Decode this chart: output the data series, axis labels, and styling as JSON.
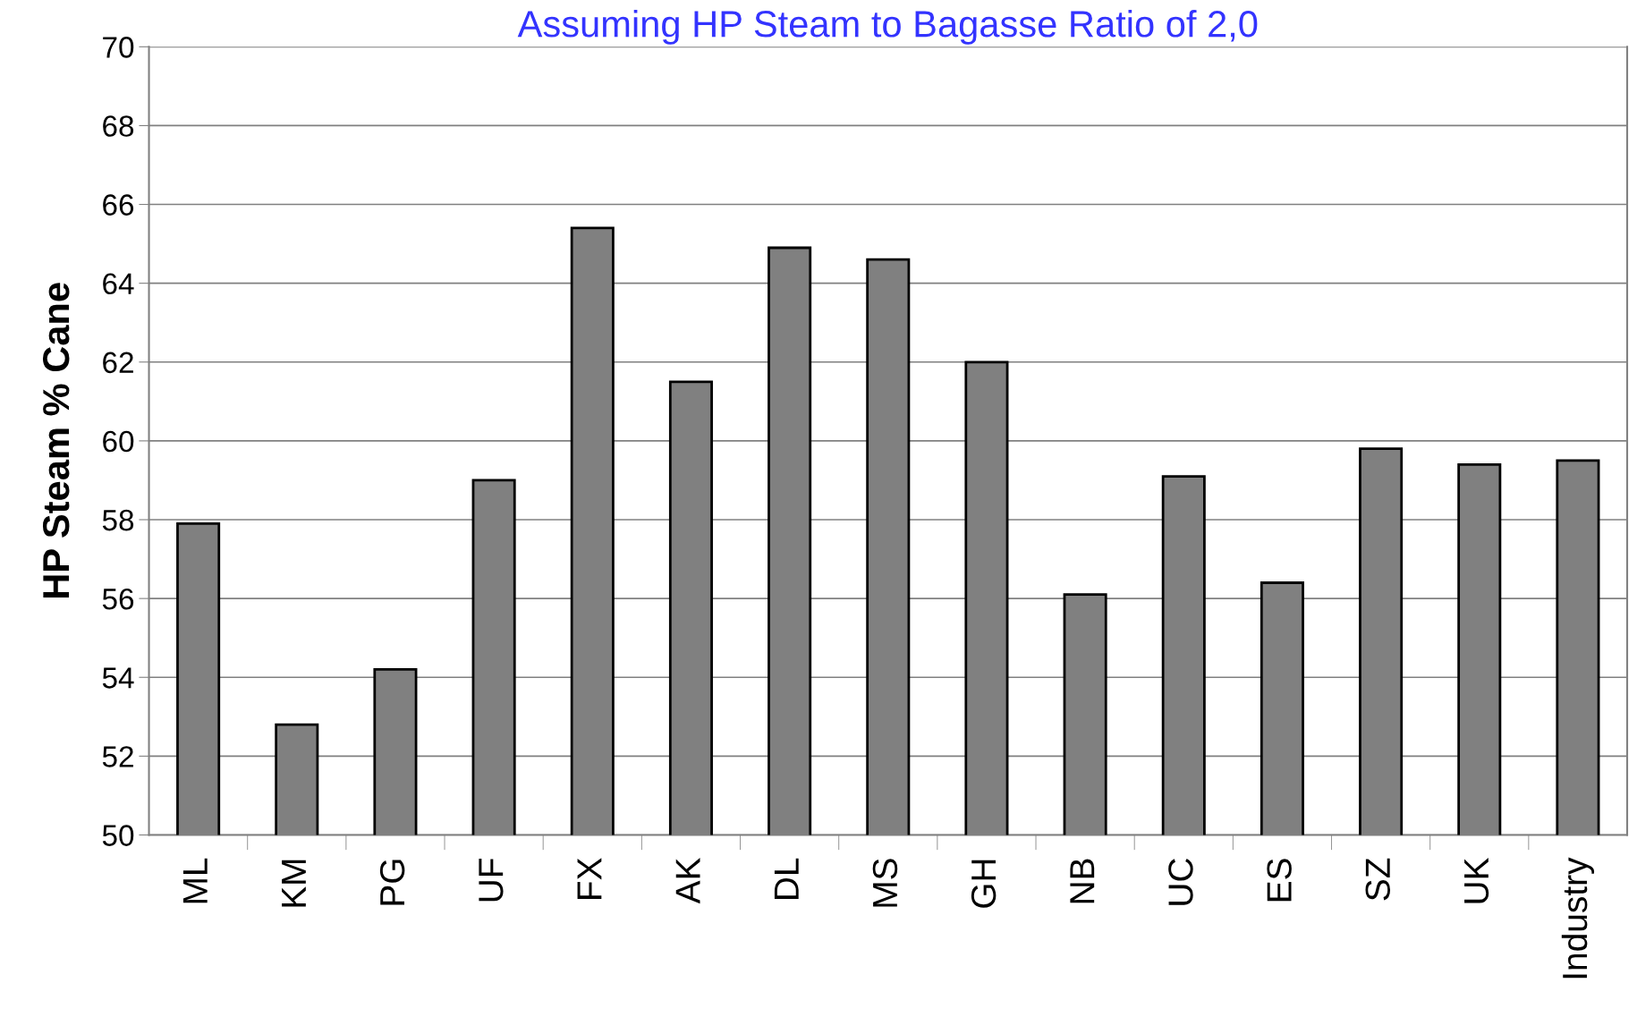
{
  "chart_data": {
    "type": "bar",
    "title": "Assuming HP Steam to Bagasse Ratio of 2,0",
    "ylabel": "HP Steam % Cane",
    "categories": [
      "ML",
      "KM",
      "PG",
      "UF",
      "FX",
      "AK",
      "DL",
      "MS",
      "GH",
      "NB",
      "UC",
      "ES",
      "SZ",
      "UK",
      "Industry"
    ],
    "values": [
      57.9,
      52.8,
      54.2,
      59.0,
      65.4,
      61.5,
      64.9,
      64.6,
      62.0,
      56.1,
      59.1,
      56.4,
      59.8,
      59.4,
      59.5
    ],
    "color": "#808080",
    "ylim": [
      50,
      70
    ],
    "yticks": [
      50,
      52,
      54,
      56,
      58,
      60,
      62,
      64,
      66,
      68,
      70
    ],
    "grid": "y",
    "legend": false
  }
}
